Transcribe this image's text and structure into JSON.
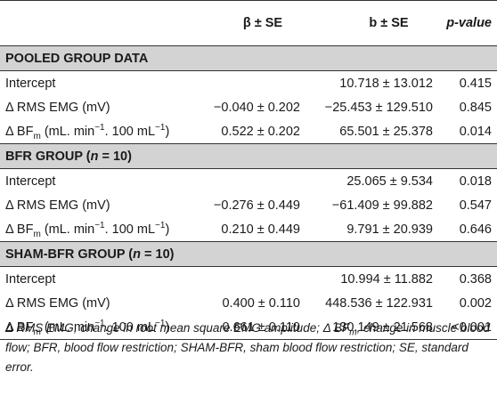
{
  "header": {
    "col1": "",
    "col2": "β ± SE",
    "col3": "b ± SE",
    "col4": "p-value"
  },
  "sections": [
    {
      "title_main": "POOLED GROUP DATA",
      "title_n": "",
      "rows": [
        {
          "label": "Intercept",
          "beta": "",
          "b": "10.718 ± 13.012",
          "p": "0.415"
        },
        {
          "label": "Δ RMS EMG (mV)",
          "beta": "−0.040 ± 0.202",
          "b": "−25.453 ± 129.510",
          "p": "0.845"
        },
        {
          "label_prefix": "Δ BF",
          "label_sub": "m",
          "label_units_a": " (mL. min",
          "label_sup_a": "−1",
          "label_units_b": ". 100 mL",
          "label_sup_b": "−1",
          "label_units_c": ")",
          "beta": "0.522 ± 0.202",
          "b": "65.501 ± 25.378",
          "p": "0.014"
        }
      ]
    },
    {
      "title_main": "BFR GROUP (",
      "title_n_var": "n",
      "title_n_rest": " = 10)",
      "rows": [
        {
          "label": "Intercept",
          "beta": "",
          "b": "25.065 ± 9.534",
          "p": "0.018"
        },
        {
          "label": "Δ RMS EMG (mV)",
          "beta": "−0.276 ± 0.449",
          "b": "−61.409 ± 99.882",
          "p": "0.547"
        },
        {
          "label_prefix": "Δ BF",
          "label_sub": "m",
          "label_units_a": " (mL. min",
          "label_sup_a": "−1",
          "label_units_b": ". 100 mL",
          "label_sup_b": "−1",
          "label_units_c": ")",
          "beta": "0.210 ± 0.449",
          "b": "9.791 ± 20.939",
          "p": "0.646"
        }
      ]
    },
    {
      "title_main": "SHAM-BFR GROUP (",
      "title_n_var": "n",
      "title_n_rest": " = 10)",
      "rows": [
        {
          "label": "Intercept",
          "beta": "",
          "b": "10.994 ± 11.882",
          "p": "0.368"
        },
        {
          "label": "Δ RMS EMG (mV)",
          "beta": "0.400 ± 0.110",
          "b": "448.536 ± 122.931",
          "p": "0.002"
        },
        {
          "label_prefix": "Δ BF",
          "label_sub": "m",
          "label_units_a": " (mL. min",
          "label_sup_a": "−1",
          "label_units_b": ". 100 mL",
          "label_sup_b": "−1",
          "label_units_c": ")",
          "beta": "0.661 ± 0.110",
          "b": "130.149 ± 21.568",
          "p": "<0.001"
        }
      ]
    }
  ],
  "footnote": {
    "text1": "Δ RMS EMG, change in root mean square EMG amplitude; Δ BF",
    "sub": "m",
    "text2": ", change in muscle blood flow; BFR, blood flow restriction; SHAM-BFR, sham blood flow restriction; SE, standard error."
  }
}
